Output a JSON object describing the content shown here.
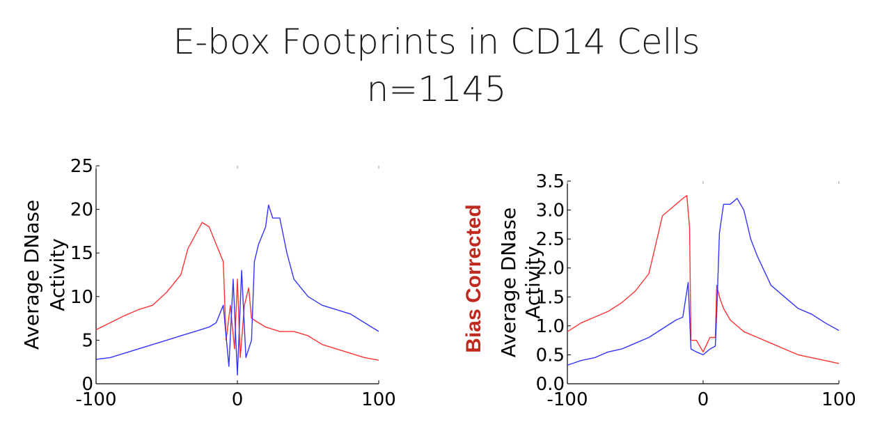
{
  "figure": {
    "title_line1": "E-box Footprints in CD14 Cells",
    "title_line2": "n=1145"
  },
  "chart_data": [
    {
      "type": "line",
      "panel": "left",
      "xlim": [
        -100,
        100
      ],
      "ylim": [
        0,
        25
      ],
      "xticks": [
        "-100",
        "0",
        "100"
      ],
      "yticks": [
        "0",
        "5",
        "10",
        "15",
        "20",
        "25"
      ],
      "ylabel_line1": "Average DNase",
      "ylabel_line2": "Activity",
      "side_label": "",
      "grid": false,
      "colors": [
        "#ff3333",
        "#3333ff"
      ],
      "series": [
        {
          "color": "#ff3333",
          "x": [
            -100,
            -90,
            -80,
            -70,
            -60,
            -50,
            -40,
            -35,
            -30,
            -25,
            -20,
            -15,
            -10,
            -8,
            -5,
            -2,
            0,
            2,
            5,
            8,
            10,
            15,
            20,
            30,
            40,
            50,
            60,
            70,
            80,
            90,
            100
          ],
          "y": [
            6.2,
            7.0,
            7.8,
            8.5,
            9.0,
            10.5,
            12.5,
            15.5,
            17.0,
            18.5,
            18.0,
            16.0,
            14.0,
            5.0,
            9.0,
            4.0,
            12.0,
            3.0,
            9.0,
            11.0,
            7.5,
            7.0,
            6.5,
            6.0,
            6.0,
            5.5,
            4.5,
            4.0,
            3.5,
            3.0,
            2.7
          ]
        },
        {
          "color": "#3333ff",
          "x": [
            -100,
            -90,
            -80,
            -70,
            -60,
            -50,
            -40,
            -30,
            -20,
            -15,
            -10,
            -6,
            -3,
            0,
            3,
            6,
            10,
            12,
            15,
            20,
            22,
            25,
            30,
            35,
            40,
            50,
            60,
            70,
            80,
            90,
            100
          ],
          "y": [
            2.8,
            3.0,
            3.5,
            4.0,
            4.5,
            5.0,
            5.5,
            6.0,
            6.5,
            7.0,
            9.0,
            2.0,
            12.0,
            1.0,
            13.0,
            3.0,
            5.0,
            14.0,
            16.0,
            18.0,
            20.5,
            19.0,
            19.0,
            15.0,
            12.0,
            10.0,
            9.0,
            8.5,
            8.0,
            7.0,
            6.0
          ]
        }
      ]
    },
    {
      "type": "line",
      "panel": "right",
      "xlim": [
        -100,
        100
      ],
      "ylim": [
        0,
        3.5
      ],
      "xticks": [
        "-100",
        "0",
        "100"
      ],
      "yticks": [
        "0.0",
        "0.5",
        "1.0",
        "1.5",
        "2.0",
        "2.5",
        "3.0",
        "3.5"
      ],
      "ylabel_line1": "Average DNase",
      "ylabel_line2": "Activity",
      "side_label": "Bias Corrected",
      "grid": false,
      "colors": [
        "#ff3333",
        "#3333ff"
      ],
      "series": [
        {
          "color": "#ff3333",
          "x": [
            -100,
            -90,
            -80,
            -70,
            -60,
            -50,
            -40,
            -35,
            -30,
            -25,
            -20,
            -15,
            -12,
            -10,
            -9,
            -5,
            0,
            5,
            9,
            10,
            12,
            15,
            20,
            30,
            40,
            50,
            60,
            70,
            80,
            90,
            100
          ],
          "y": [
            0.9,
            1.05,
            1.15,
            1.25,
            1.4,
            1.6,
            1.9,
            2.4,
            2.9,
            3.0,
            3.1,
            3.2,
            3.25,
            2.7,
            0.75,
            0.75,
            0.55,
            0.8,
            0.8,
            1.7,
            1.5,
            1.3,
            1.1,
            0.9,
            0.8,
            0.7,
            0.6,
            0.5,
            0.45,
            0.4,
            0.35
          ]
        },
        {
          "color": "#3333ff",
          "x": [
            -100,
            -90,
            -80,
            -70,
            -60,
            -50,
            -40,
            -30,
            -20,
            -15,
            -11,
            -9,
            -5,
            0,
            5,
            9,
            10,
            12,
            15,
            20,
            25,
            30,
            35,
            40,
            50,
            60,
            70,
            80,
            90,
            100
          ],
          "y": [
            0.32,
            0.4,
            0.45,
            0.55,
            0.6,
            0.7,
            0.8,
            0.95,
            1.1,
            1.15,
            1.75,
            0.6,
            0.55,
            0.5,
            0.6,
            0.65,
            1.2,
            2.6,
            3.1,
            3.1,
            3.2,
            3.0,
            2.5,
            2.2,
            1.7,
            1.5,
            1.3,
            1.2,
            1.05,
            0.92
          ]
        }
      ]
    }
  ]
}
